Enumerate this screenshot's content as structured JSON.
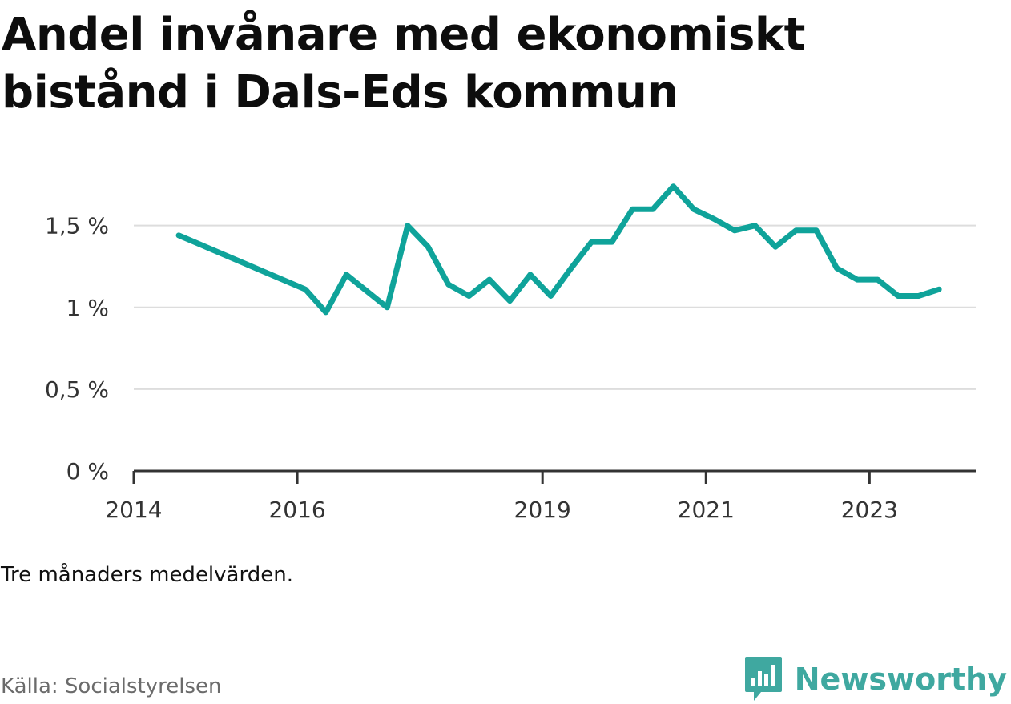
{
  "title": "Andel invånare med ekonomiskt bistånd i Dals-Eds kommun",
  "note": "Tre månaders medelvärden.",
  "source": "Källa: Socialstyrelsen",
  "brand": {
    "name": "Newsworthy",
    "logo_icon": "bar-chart-speech-bubble-icon",
    "color": "#3fa8a0"
  },
  "chart_data": {
    "type": "line",
    "title": "Andel invånare med ekonomiskt bistånd i Dals-Eds kommun",
    "xlabel": "",
    "ylabel": "",
    "x_ticks": [
      "2014",
      "2016",
      "2019",
      "2021",
      "2023"
    ],
    "x_tick_values": [
      2014,
      2016,
      2019,
      2021,
      2023
    ],
    "xlim": [
      2014,
      2024.3
    ],
    "y_ticks": [
      "0 %",
      "0,5 %",
      "1 %",
      "1,5 %"
    ],
    "y_tick_values": [
      0,
      0.5,
      1.0,
      1.5
    ],
    "ylim": [
      0,
      1.9
    ],
    "grid": true,
    "line_color": "#0fa39a",
    "series": [
      {
        "x": [
          2014.55,
          2016.1,
          2016.35,
          2016.6,
          2016.85,
          2017.1,
          2017.35,
          2017.6,
          2017.85,
          2018.1,
          2018.35,
          2018.6,
          2018.85,
          2019.1,
          2019.35,
          2019.6,
          2019.85,
          2020.1,
          2020.35,
          2020.6,
          2020.85,
          2021.1,
          2021.35,
          2021.6,
          2021.85,
          2022.1,
          2022.35,
          2022.6,
          2022.85,
          2023.1,
          2023.35,
          2023.6,
          2023.85
        ],
        "values": [
          1.44,
          1.11,
          0.97,
          1.2,
          1.1,
          1.0,
          1.5,
          1.37,
          1.14,
          1.07,
          1.17,
          1.04,
          1.2,
          1.07,
          1.24,
          1.4,
          1.4,
          1.6,
          1.6,
          1.74,
          1.6,
          1.54,
          1.47,
          1.5,
          1.37,
          1.47,
          1.47,
          1.24,
          1.17,
          1.17,
          1.07,
          1.07,
          1.11
        ]
      }
    ]
  }
}
